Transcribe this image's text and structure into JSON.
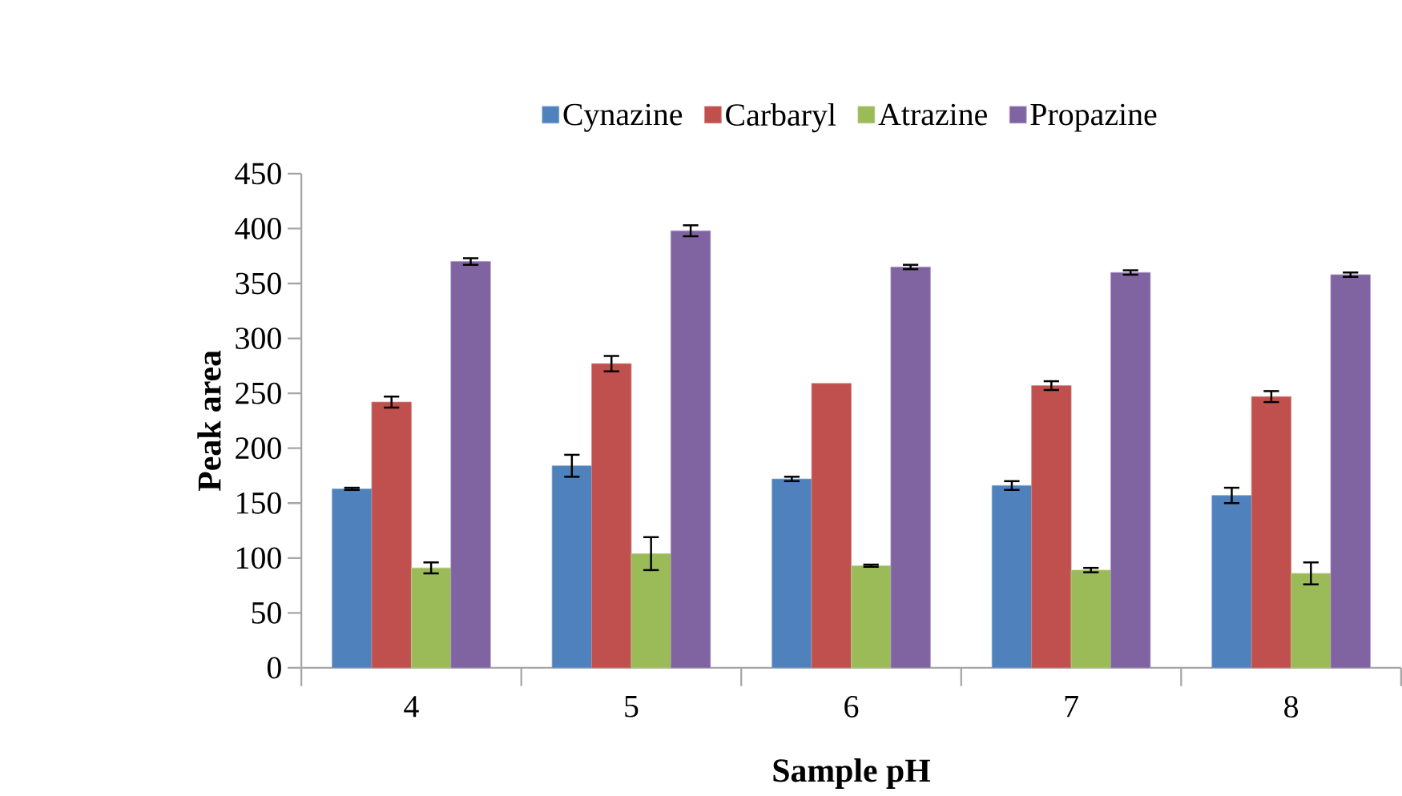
{
  "chart_data": {
    "type": "bar",
    "xlabel": "Sample pH",
    "ylabel": "Peak area",
    "categories": [
      "4",
      "5",
      "6",
      "7",
      "8"
    ],
    "series": [
      {
        "name": "Cynazine",
        "color": "#4f81bd",
        "values": [
          163,
          184,
          172,
          166,
          157
        ],
        "errors": [
          1,
          10,
          2,
          4,
          7
        ]
      },
      {
        "name": "Carbaryl",
        "color": "#c0504d",
        "values": [
          242,
          277,
          259,
          257,
          247
        ],
        "errors": [
          5,
          7,
          null,
          4,
          5
        ]
      },
      {
        "name": "Atrazine",
        "color": "#9bbb59",
        "values": [
          91,
          104,
          93,
          89,
          86
        ],
        "errors": [
          5,
          15,
          1,
          2,
          10
        ]
      },
      {
        "name": "Propazine",
        "color": "#8064a2",
        "values": [
          370,
          398,
          365,
          360,
          358
        ],
        "errors": [
          3,
          5,
          2,
          2,
          2
        ]
      }
    ],
    "ylim": [
      0,
      450
    ],
    "yticks": [
      0,
      50,
      100,
      150,
      200,
      250,
      300,
      350,
      400,
      450
    ],
    "grid": false,
    "legend": "top"
  }
}
